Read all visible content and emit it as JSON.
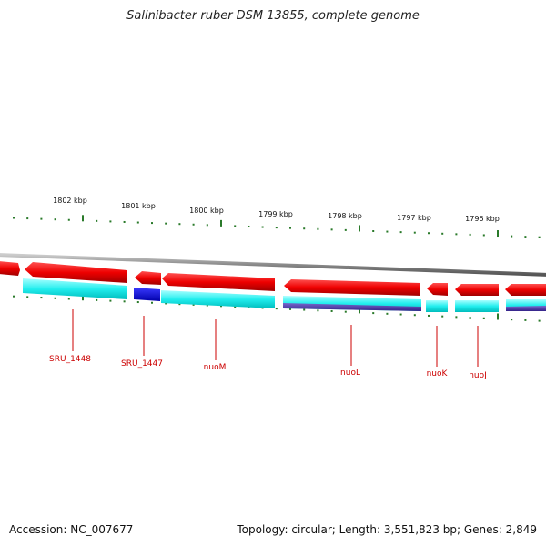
{
  "title": "Salinibacter ruber DSM 13855, complete genome",
  "accession": "Accession: NC_007677",
  "info": "Topology: circular; Length: 3,551,823 bp; Genes: 2,849",
  "scale_labels": [
    "1802 kbp",
    "1801 kbp",
    "1800 kbp",
    "1799 kbp",
    "1798 kbp",
    "1797 kbp",
    "1796 kbp"
  ],
  "gene_labels": [
    "SRU_1448",
    "SRU_1447",
    "nuoM",
    "nuoL",
    "nuoK",
    "nuoJ"
  ],
  "colors": {
    "gene_forward": "#ff0000",
    "cds_track": "#00ffff",
    "highlight_cds": "#0000ff",
    "purple_track": "#5544aa",
    "tick": "#2a7a2a",
    "backbone": "#888888",
    "label": "#cc0000"
  }
}
